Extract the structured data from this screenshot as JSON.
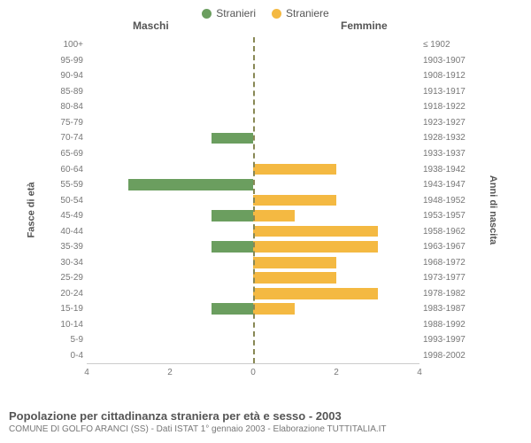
{
  "chart": {
    "type": "population-pyramid",
    "legend": [
      {
        "label": "Stranieri",
        "color": "#6b9e5f"
      },
      {
        "label": "Straniere",
        "color": "#f4b942"
      }
    ],
    "column_titles": {
      "left": "Maschi",
      "right": "Femmine"
    },
    "y_left_title": "Fasce di età",
    "y_right_title": "Anni di nascita",
    "x_max": 4,
    "x_ticks_left": [
      "4",
      "2",
      "0"
    ],
    "x_ticks_right": [
      "0",
      "2",
      "4"
    ],
    "centerline_color": "#888855",
    "bar_male_color": "#6b9e5f",
    "bar_female_color": "#f4b942",
    "background_color": "#ffffff",
    "label_color": "#777777",
    "rows": [
      {
        "age": "100+",
        "birth": "≤ 1902",
        "m": 0,
        "f": 0
      },
      {
        "age": "95-99",
        "birth": "1903-1907",
        "m": 0,
        "f": 0
      },
      {
        "age": "90-94",
        "birth": "1908-1912",
        "m": 0,
        "f": 0
      },
      {
        "age": "85-89",
        "birth": "1913-1917",
        "m": 0,
        "f": 0
      },
      {
        "age": "80-84",
        "birth": "1918-1922",
        "m": 0,
        "f": 0
      },
      {
        "age": "75-79",
        "birth": "1923-1927",
        "m": 0,
        "f": 0
      },
      {
        "age": "70-74",
        "birth": "1928-1932",
        "m": 1,
        "f": 0
      },
      {
        "age": "65-69",
        "birth": "1933-1937",
        "m": 0,
        "f": 0
      },
      {
        "age": "60-64",
        "birth": "1938-1942",
        "m": 0,
        "f": 2
      },
      {
        "age": "55-59",
        "birth": "1943-1947",
        "m": 3,
        "f": 0
      },
      {
        "age": "50-54",
        "birth": "1948-1952",
        "m": 0,
        "f": 2
      },
      {
        "age": "45-49",
        "birth": "1953-1957",
        "m": 1,
        "f": 1
      },
      {
        "age": "40-44",
        "birth": "1958-1962",
        "m": 0,
        "f": 3
      },
      {
        "age": "35-39",
        "birth": "1963-1967",
        "m": 1,
        "f": 3
      },
      {
        "age": "30-34",
        "birth": "1968-1972",
        "m": 0,
        "f": 2
      },
      {
        "age": "25-29",
        "birth": "1973-1977",
        "m": 0,
        "f": 2
      },
      {
        "age": "20-24",
        "birth": "1978-1982",
        "m": 0,
        "f": 3
      },
      {
        "age": "15-19",
        "birth": "1983-1987",
        "m": 1,
        "f": 1
      },
      {
        "age": "10-14",
        "birth": "1988-1992",
        "m": 0,
        "f": 0
      },
      {
        "age": "5-9",
        "birth": "1993-1997",
        "m": 0,
        "f": 0
      },
      {
        "age": "0-4",
        "birth": "1998-2002",
        "m": 0,
        "f": 0
      }
    ]
  },
  "footer": {
    "title": "Popolazione per cittadinanza straniera per età e sesso - 2003",
    "subtitle": "COMUNE DI GOLFO ARANCI (SS) - Dati ISTAT 1° gennaio 2003 - Elaborazione TUTTITALIA.IT"
  }
}
